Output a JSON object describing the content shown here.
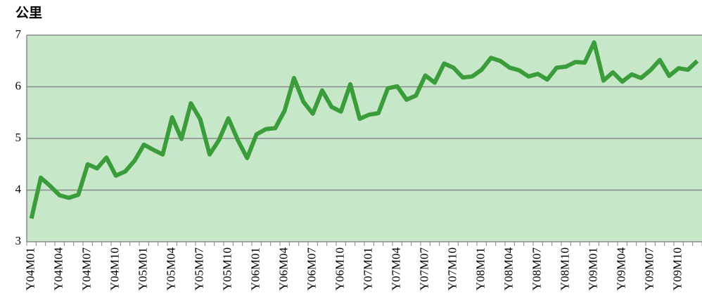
{
  "chart_data": {
    "type": "line",
    "y_label": "公里",
    "categories": [
      "Y04M01",
      null,
      null,
      "Y04M04",
      null,
      null,
      "Y04M07",
      null,
      null,
      "Y04M10",
      null,
      null,
      "Y05M01",
      null,
      null,
      "Y05M04",
      null,
      null,
      "Y05M07",
      null,
      null,
      "Y05M10",
      null,
      null,
      "Y06M01",
      null,
      null,
      "Y06M04",
      null,
      null,
      "Y06M07",
      null,
      null,
      "Y06M10",
      null,
      null,
      "Y07M01",
      null,
      null,
      "Y07M04",
      null,
      null,
      "Y07M07",
      null,
      null,
      "Y07M10",
      null,
      null,
      "Y08M01",
      null,
      null,
      "Y08M04",
      null,
      null,
      "Y08M07",
      null,
      null,
      "Y08M10",
      null,
      null,
      "Y09M01",
      null,
      null,
      "Y09M04",
      null,
      null,
      "Y09M07",
      null,
      null,
      "Y09M10",
      null,
      null
    ],
    "series": [
      {
        "color": "#3a9c3a",
        "values": [
          3.45,
          4.24,
          4.08,
          3.9,
          3.85,
          3.91,
          4.5,
          4.42,
          4.63,
          4.28,
          4.36,
          4.57,
          4.88,
          4.78,
          4.69,
          5.41,
          4.99,
          5.68,
          5.37,
          4.69,
          4.97,
          5.39,
          4.97,
          4.62,
          5.08,
          5.18,
          5.2,
          5.54,
          6.17,
          5.71,
          5.48,
          5.93,
          5.61,
          5.52,
          6.05,
          5.38,
          5.46,
          5.49,
          5.97,
          6.01,
          5.75,
          5.83,
          6.22,
          6.08,
          6.45,
          6.37,
          6.18,
          6.2,
          6.33,
          6.56,
          6.5,
          6.37,
          6.32,
          6.2,
          6.25,
          6.14,
          6.37,
          6.39,
          6.48,
          6.47,
          6.86,
          6.12,
          6.28,
          6.1,
          6.24,
          6.17,
          6.32,
          6.52,
          6.21,
          6.36,
          6.33,
          6.5
        ]
      }
    ],
    "ylim": [
      3,
      7
    ],
    "yticks": [
      3,
      4,
      5,
      6,
      7
    ],
    "grid": true,
    "plot_background": "#c6e8c9"
  }
}
